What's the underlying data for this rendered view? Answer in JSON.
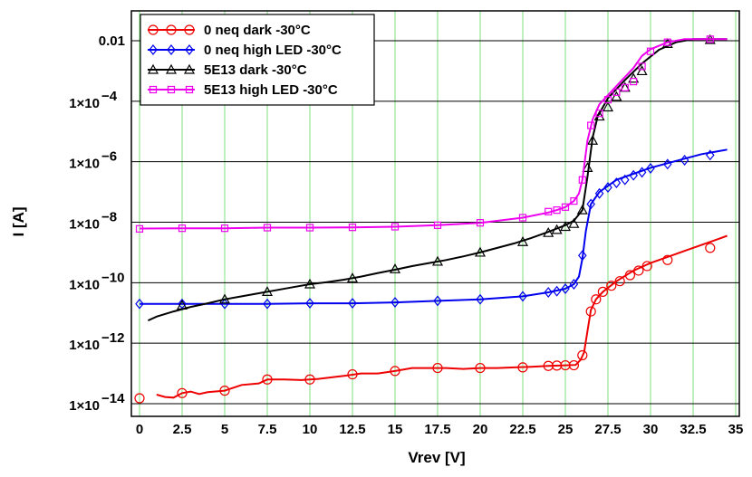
{
  "chart_data": {
    "type": "line",
    "title": "",
    "xlabel": "Vrev [V]",
    "ylabel": "I [A]",
    "xlim": [
      0,
      35
    ],
    "ylim_log10": [
      -14,
      -1.5
    ],
    "y_scale": "log",
    "grid": true,
    "legend_position": "top-left",
    "x_ticks": [
      "0",
      "2.5",
      "5",
      "7.5",
      "10",
      "12.5",
      "15",
      "17.5",
      "20",
      "22.5",
      "25",
      "27.5",
      "30",
      "32.5",
      "35"
    ],
    "y_ticks": [
      {
        "base": "0.01",
        "exp": ""
      },
      {
        "base": "1×10",
        "exp": "−4"
      },
      {
        "base": "1×10",
        "exp": "−6"
      },
      {
        "base": "1×10",
        "exp": "−8"
      },
      {
        "base": "1×10",
        "exp": "−10"
      },
      {
        "base": "1×10",
        "exp": "−12"
      },
      {
        "base": "1×10",
        "exp": "−14"
      }
    ],
    "series": [
      {
        "name": "0 neq dark -30°C",
        "color": "#ee0000",
        "marker": "circle",
        "line": [
          [
            1,
            -13.7
          ],
          [
            1.5,
            -13.78
          ],
          [
            2,
            -13.8
          ],
          [
            2.5,
            -13.65
          ],
          [
            3,
            -13.6
          ],
          [
            3.5,
            -13.68
          ],
          [
            4,
            -13.62
          ],
          [
            5,
            -13.57
          ],
          [
            6,
            -13.38
          ],
          [
            7,
            -13.33
          ],
          [
            7.5,
            -13.2
          ],
          [
            8.5,
            -13.2
          ],
          [
            9.5,
            -13.22
          ],
          [
            10.5,
            -13.18
          ],
          [
            12,
            -13.08
          ],
          [
            13,
            -13.0
          ],
          [
            14,
            -13.0
          ],
          [
            15,
            -12.92
          ],
          [
            16,
            -12.82
          ],
          [
            17,
            -12.82
          ],
          [
            18,
            -12.82
          ],
          [
            19,
            -12.85
          ],
          [
            20,
            -12.82
          ],
          [
            21,
            -12.82
          ],
          [
            22,
            -12.8
          ],
          [
            23,
            -12.78
          ],
          [
            24,
            -12.75
          ],
          [
            25,
            -12.73
          ],
          [
            25.6,
            -12.72
          ],
          [
            25.9,
            -12.55
          ],
          [
            26.1,
            -12.3
          ],
          [
            26.3,
            -11.6
          ],
          [
            26.5,
            -10.9
          ],
          [
            26.8,
            -10.55
          ],
          [
            27.2,
            -10.3
          ],
          [
            28,
            -9.95
          ],
          [
            29,
            -9.6
          ],
          [
            30,
            -9.35
          ],
          [
            31,
            -9.15
          ],
          [
            32,
            -8.95
          ],
          [
            33,
            -8.75
          ],
          [
            34,
            -8.55
          ],
          [
            34.5,
            -8.45
          ]
        ],
        "markers": [
          [
            0,
            -13.82
          ],
          [
            2.5,
            -13.65
          ],
          [
            5,
            -13.57
          ],
          [
            7.5,
            -13.2
          ],
          [
            10,
            -13.2
          ],
          [
            12.5,
            -13.03
          ],
          [
            15,
            -12.92
          ],
          [
            17.5,
            -12.82
          ],
          [
            20,
            -12.82
          ],
          [
            22.5,
            -12.8
          ],
          [
            24,
            -12.75
          ],
          [
            24.5,
            -12.74
          ],
          [
            25,
            -12.73
          ],
          [
            25.5,
            -12.73
          ],
          [
            26,
            -12.4
          ],
          [
            26.5,
            -10.95
          ],
          [
            26.8,
            -10.55
          ],
          [
            27.2,
            -10.3
          ],
          [
            27.7,
            -10.1
          ],
          [
            28.2,
            -9.95
          ],
          [
            28.8,
            -9.75
          ],
          [
            29.3,
            -9.6
          ],
          [
            29.8,
            -9.45
          ],
          [
            31,
            -9.25
          ],
          [
            33.5,
            -8.85
          ]
        ]
      },
      {
        "name": "0 neq high LED -30°C",
        "color": "#0000ee",
        "marker": "diamond",
        "line": [
          [
            0,
            -10.7
          ],
          [
            2.5,
            -10.7
          ],
          [
            5,
            -10.7
          ],
          [
            7.5,
            -10.7
          ],
          [
            10,
            -10.68
          ],
          [
            12.5,
            -10.68
          ],
          [
            15,
            -10.65
          ],
          [
            17.5,
            -10.6
          ],
          [
            20,
            -10.55
          ],
          [
            22.5,
            -10.45
          ],
          [
            24,
            -10.32
          ],
          [
            25,
            -10.2
          ],
          [
            25.5,
            -10.05
          ],
          [
            25.8,
            -9.8
          ],
          [
            26,
            -9.2
          ],
          [
            26.2,
            -8.3
          ],
          [
            26.5,
            -7.4
          ],
          [
            27,
            -7.0
          ],
          [
            28,
            -6.6
          ],
          [
            29,
            -6.4
          ],
          [
            30,
            -6.2
          ],
          [
            31,
            -6.05
          ],
          [
            32,
            -5.9
          ],
          [
            33,
            -5.75
          ],
          [
            34,
            -5.65
          ],
          [
            34.5,
            -5.6
          ]
        ],
        "markers": [
          [
            0,
            -10.7
          ],
          [
            2.5,
            -10.7
          ],
          [
            5,
            -10.7
          ],
          [
            7.5,
            -10.7
          ],
          [
            10,
            -10.68
          ],
          [
            12.5,
            -10.68
          ],
          [
            15,
            -10.65
          ],
          [
            17.5,
            -10.6
          ],
          [
            20,
            -10.55
          ],
          [
            22.5,
            -10.45
          ],
          [
            24,
            -10.32
          ],
          [
            24.5,
            -10.28
          ],
          [
            25,
            -10.2
          ],
          [
            25.5,
            -10.05
          ],
          [
            26,
            -9.1
          ],
          [
            26.5,
            -7.4
          ],
          [
            27,
            -7.05
          ],
          [
            27.5,
            -6.85
          ],
          [
            28,
            -6.7
          ],
          [
            28.5,
            -6.6
          ],
          [
            29,
            -6.45
          ],
          [
            29.5,
            -6.35
          ],
          [
            30,
            -6.22
          ],
          [
            31,
            -6.08
          ],
          [
            32,
            -5.95
          ],
          [
            33.5,
            -5.78
          ]
        ]
      },
      {
        "name": "5E13 dark -30°C",
        "color": "#000000",
        "marker": "triangle",
        "line": [
          [
            0.5,
            -11.25
          ],
          [
            1,
            -11.12
          ],
          [
            2,
            -10.95
          ],
          [
            3,
            -10.8
          ],
          [
            4,
            -10.68
          ],
          [
            5,
            -10.55
          ],
          [
            6,
            -10.45
          ],
          [
            7,
            -10.35
          ],
          [
            8,
            -10.25
          ],
          [
            9,
            -10.15
          ],
          [
            10,
            -10.05
          ],
          [
            11,
            -9.98
          ],
          [
            12,
            -9.9
          ],
          [
            13,
            -9.8
          ],
          [
            14,
            -9.68
          ],
          [
            15,
            -9.57
          ],
          [
            16,
            -9.45
          ],
          [
            17,
            -9.35
          ],
          [
            18,
            -9.25
          ],
          [
            19,
            -9.13
          ],
          [
            20,
            -9.0
          ],
          [
            21,
            -8.85
          ],
          [
            22,
            -8.7
          ],
          [
            23,
            -8.52
          ],
          [
            24,
            -8.32
          ],
          [
            25,
            -8.1
          ],
          [
            25.5,
            -7.95
          ],
          [
            26,
            -7.6
          ],
          [
            26.3,
            -6.5
          ],
          [
            26.6,
            -5.2
          ],
          [
            26.9,
            -4.5
          ],
          [
            27.5,
            -3.9
          ],
          [
            28.5,
            -3.3
          ],
          [
            29.5,
            -2.75
          ],
          [
            30.5,
            -2.3
          ],
          [
            31.5,
            -2.05
          ],
          [
            32.5,
            -1.95
          ],
          [
            33.5,
            -1.95
          ],
          [
            34.5,
            -1.95
          ]
        ],
        "markers": [
          [
            2.5,
            -10.75
          ],
          [
            5,
            -10.55
          ],
          [
            7.5,
            -10.3
          ],
          [
            10,
            -10.05
          ],
          [
            12.5,
            -9.85
          ],
          [
            15,
            -9.55
          ],
          [
            17.5,
            -9.3
          ],
          [
            20,
            -9.0
          ],
          [
            22.5,
            -8.65
          ],
          [
            24,
            -8.35
          ],
          [
            24.5,
            -8.25
          ],
          [
            25,
            -8.15
          ],
          [
            25.5,
            -8.05
          ],
          [
            26,
            -7.6
          ],
          [
            26.3,
            -6.2
          ],
          [
            26.6,
            -5.3
          ],
          [
            27,
            -4.5
          ],
          [
            27.5,
            -4.2
          ],
          [
            28,
            -3.85
          ],
          [
            28.5,
            -3.55
          ],
          [
            29,
            -3.25
          ],
          [
            29.5,
            -3.0
          ],
          [
            31,
            -2.1
          ],
          [
            33.5,
            -1.97
          ]
        ]
      },
      {
        "name": "5E13 high LED -30°C",
        "color": "#ee00ee",
        "marker": "square",
        "line": [
          [
            0,
            -8.21
          ],
          [
            2.5,
            -8.2
          ],
          [
            5,
            -8.2
          ],
          [
            7.5,
            -8.18
          ],
          [
            10,
            -8.18
          ],
          [
            12.5,
            -8.17
          ],
          [
            15,
            -8.15
          ],
          [
            17.5,
            -8.1
          ],
          [
            20,
            -8.02
          ],
          [
            22.5,
            -7.85
          ],
          [
            24,
            -7.68
          ],
          [
            24.5,
            -7.6
          ],
          [
            25,
            -7.5
          ],
          [
            25.5,
            -7.3
          ],
          [
            25.8,
            -7.05
          ],
          [
            26,
            -6.6
          ],
          [
            26.3,
            -5.3
          ],
          [
            26.6,
            -4.6
          ],
          [
            27,
            -4.1
          ],
          [
            27.5,
            -3.8
          ],
          [
            28,
            -3.5
          ],
          [
            29,
            -2.9
          ],
          [
            29.5,
            -2.5
          ],
          [
            30,
            -2.28
          ],
          [
            31,
            -2.05
          ],
          [
            32,
            -1.95
          ],
          [
            34.5,
            -1.95
          ]
        ],
        "markers": [
          [
            0,
            -8.22
          ],
          [
            2.5,
            -8.2
          ],
          [
            5,
            -8.2
          ],
          [
            7.5,
            -8.18
          ],
          [
            10,
            -8.18
          ],
          [
            12.5,
            -8.17
          ],
          [
            15,
            -8.15
          ],
          [
            17.5,
            -8.1
          ],
          [
            20,
            -8.02
          ],
          [
            22.5,
            -7.85
          ],
          [
            24,
            -7.65
          ],
          [
            24.5,
            -7.6
          ],
          [
            25,
            -7.5
          ],
          [
            25.5,
            -7.3
          ],
          [
            26,
            -6.6
          ],
          [
            26.5,
            -4.8
          ],
          [
            27,
            -4.4
          ],
          [
            27.5,
            -3.95
          ],
          [
            28,
            -3.7
          ],
          [
            28.5,
            -3.55
          ],
          [
            29,
            -3.35
          ],
          [
            29.5,
            -2.85
          ],
          [
            30,
            -2.35
          ],
          [
            31,
            -2.05
          ],
          [
            33.5,
            -1.95
          ]
        ]
      }
    ]
  }
}
